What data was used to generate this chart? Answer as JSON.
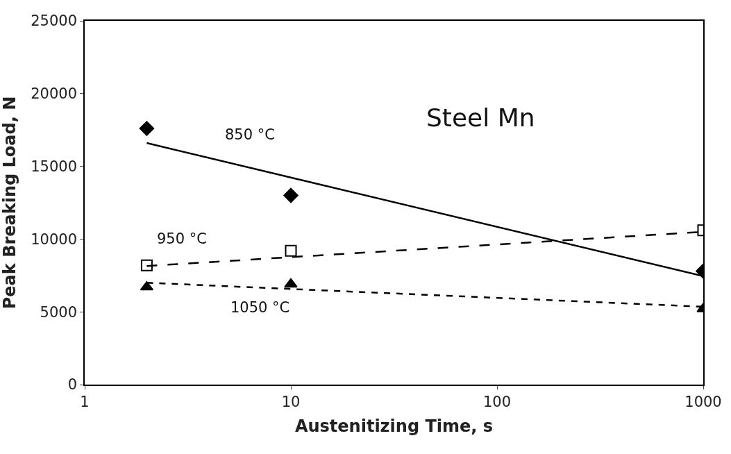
{
  "chart_data": {
    "type": "scatter",
    "xlabel": "Austenitizing Time, s",
    "ylabel": "Peak Breaking Load, N",
    "log": "x",
    "xlim": [
      1,
      1000
    ],
    "xticks": [
      1,
      10,
      100,
      1000
    ],
    "ylim": [
      0,
      25000
    ],
    "yticks": [
      0,
      5000,
      10000,
      15000,
      20000,
      25000
    ],
    "x": [
      2,
      10,
      1000
    ],
    "series": [
      {
        "color": "#000000",
        "marker": "diamond",
        "values": [
          17600,
          13000,
          7800
        ]
      },
      {
        "color": "#000000",
        "marker": "square",
        "values": [
          8200,
          9200,
          10600
        ]
      },
      {
        "color": "#000000",
        "marker": "triangle",
        "values": [
          6700,
          6900,
          5200
        ]
      },
      {
        "type": "line",
        "color": "#000000",
        "line_style": "solid",
        "values": [
          16600,
          14230,
          7450
        ]
      },
      {
        "type": "line",
        "color": "#000000",
        "line_style": "dashed",
        "values": [
          8150,
          8760,
          10500
        ]
      },
      {
        "type": "line",
        "color": "#000000",
        "line_style": "dotted",
        "values": [
          7000,
          6570,
          5350
        ]
      }
    ],
    "annotations": [
      "Steel Mn",
      "850 °C",
      "950 °C",
      "1050 °C"
    ]
  }
}
